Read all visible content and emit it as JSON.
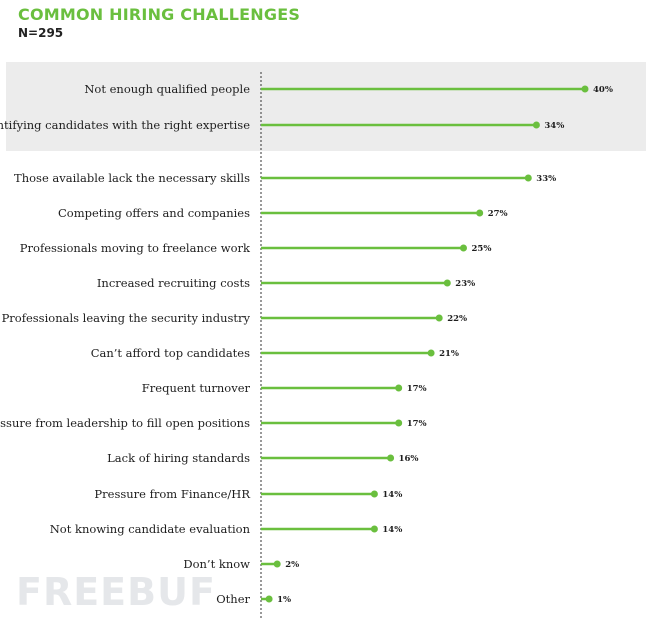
{
  "header": {
    "title": "COMMON HIRING CHALLENGES",
    "subtitle": "N=295"
  },
  "colors": {
    "accent": "#6abf3e",
    "title": "#6abf3e",
    "highlight_band": "#ececec"
  },
  "watermark": "FREEBUF",
  "chart_data": {
    "type": "bar",
    "orientation": "horizontal",
    "style": "lollipop",
    "title": "COMMON HIRING CHALLENGES",
    "subtitle": "N=295",
    "value_suffix": "%",
    "highlighted_count": 2,
    "categories": [
      "Not enough qualified people",
      "Identifying candidates with the right expertise",
      "Those available lack the necessary skills",
      "Competing offers and companies",
      "Professionals moving to freelance work",
      "Increased recruiting costs",
      "Professionals leaving the security industry",
      "Can’t afford top candidates",
      "Frequent turnover",
      "Pressure from leadership to fill open positions",
      "Lack of hiring standards",
      "Pressure from Finance/HR",
      "Not knowing candidate evaluation",
      "Don’t know",
      "Other"
    ],
    "values": [
      40,
      34,
      33,
      27,
      25,
      23,
      22,
      21,
      17,
      17,
      16,
      14,
      14,
      2,
      1
    ],
    "xlim": [
      0,
      40
    ],
    "grid": false,
    "legend": "none"
  }
}
